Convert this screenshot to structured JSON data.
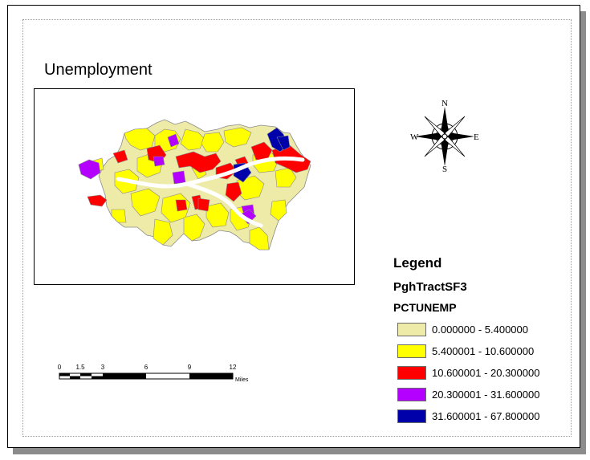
{
  "title": "Unemployment",
  "legend": {
    "title": "Legend",
    "layer": "PghTractSF3",
    "field": "PCTUNEMP",
    "classes": [
      {
        "label": "0.000000 - 5.400000",
        "color": "#eeeaa8"
      },
      {
        "label": "5.400001 - 10.600000",
        "color": "#ffff00"
      },
      {
        "label": "10.600001 - 20.300000",
        "color": "#ff0000"
      },
      {
        "label": "20.300001 - 31.600000",
        "color": "#b400ff"
      },
      {
        "label": "31.600001 - 67.800000",
        "color": "#0000aa"
      }
    ]
  },
  "north_arrow": {
    "n": "N",
    "s": "S",
    "e": "E",
    "w": "W"
  },
  "scale_bar": {
    "ticks": [
      "0",
      "1.5",
      "3",
      "6",
      "9",
      "12"
    ],
    "unit": "Miles"
  }
}
